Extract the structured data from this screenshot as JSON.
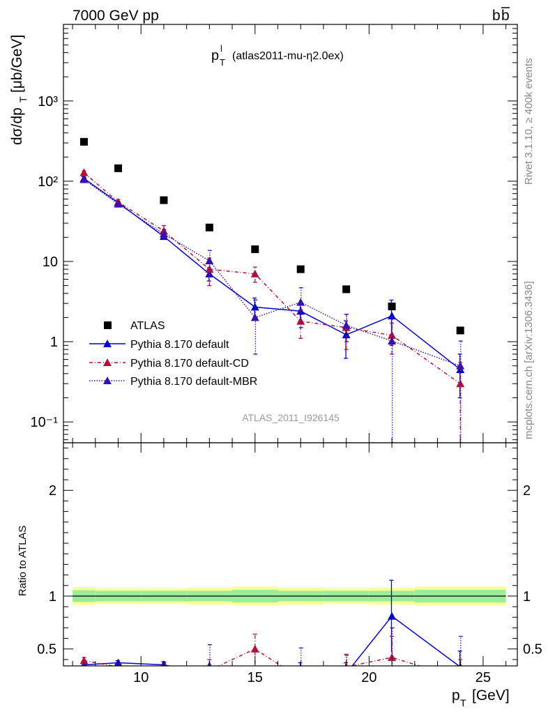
{
  "header": {
    "left": "7000 GeV pp",
    "right": "b",
    "right_bar": "b"
  },
  "plot_title": {
    "main": "p",
    "sup": "l",
    "sub": "T",
    "detail": "(atlas2011-mu-η2.0ex)"
  },
  "side_labels": {
    "rivet": "Rivet 3.1.10, ≥ 400k events",
    "mcplots": "mcplots.cern.ch [arXiv:1306.3436]"
  },
  "watermark": "ATLAS_2011_I926145",
  "y_label_top": "dσ/dp",
  "y_label_top_sub": "T",
  "y_label_top_unit": "[μb/GeV]",
  "y_label_bottom": "Ratio to ATLAS",
  "x_label": "p",
  "x_label_sub": "T",
  "x_label_unit": "[GeV]",
  "legend": {
    "atlas": "ATLAS",
    "default": "Pythia 8.170 default",
    "cd": "Pythia 8.170 default-CD",
    "mbr": "Pythia 8.170 default-MBR"
  },
  "colors": {
    "atlas": "#000000",
    "default": "#0000cc",
    "cd": "#b0103a",
    "mbr": "#3a0fb0",
    "band_inner": "#99ee99",
    "band_outer": "#ffff99"
  },
  "chart_data": [
    {
      "type": "scatter",
      "title": "",
      "xlim": [
        6.6,
        26.5
      ],
      "ylim": [
        0.055,
        9000
      ],
      "yscale": "log",
      "xticks": [
        "10",
        "15",
        "20",
        "25"
      ],
      "yticks": [
        "10⁻¹",
        "1",
        "10",
        "10²",
        "10³"
      ],
      "x_edges": [
        7,
        8,
        10,
        12,
        14,
        16,
        18,
        20,
        22,
        26
      ],
      "series": [
        {
          "name": "ATLAS",
          "x": [
            7.5,
            9,
            11,
            13,
            15,
            17,
            19,
            21,
            24
          ],
          "y": [
            310,
            145,
            58,
            26.5,
            14.2,
            8.0,
            4.5,
            2.75,
            1.38
          ]
        },
        {
          "name": "Pythia 8.170 default",
          "x": [
            7.5,
            9,
            11,
            13,
            15,
            17,
            19,
            21,
            24
          ],
          "y": [
            108,
            54,
            20.5,
            7.0,
            2.7,
            2.4,
            1.22,
            2.1,
            0.45
          ],
          "err": [
            6,
            3,
            1.5,
            1.3,
            0.8,
            0.6,
            0.6,
            1.2,
            0.25
          ]
        },
        {
          "name": "Pythia 8.170 default-CD",
          "x": [
            7.5,
            9,
            11,
            13,
            15,
            17,
            19,
            21,
            24
          ],
          "y": [
            128,
            55,
            24,
            8.0,
            7.0,
            1.8,
            1.5,
            1.2,
            0.3
          ],
          "err": [
            7,
            4,
            4,
            3,
            1.5,
            0.7,
            0.7,
            0.5,
            0.25
          ]
        },
        {
          "name": "Pythia 8.170 default-MBR",
          "x": [
            7.5,
            9,
            11,
            13,
            15,
            17,
            19,
            21,
            24
          ],
          "y": [
            105,
            52,
            22,
            10.2,
            2.0,
            3.1,
            1.6,
            1.02,
            0.5
          ],
          "err": [
            6,
            3,
            3,
            3.5,
            1.3,
            1.6,
            0.6,
            1.01,
            0.52
          ]
        }
      ]
    },
    {
      "type": "line",
      "title": "",
      "ylabel": "Ratio to ATLAS",
      "xlim": [
        6.6,
        26.5
      ],
      "ylim": [
        0.34,
        2.45
      ],
      "xticks": [
        "10",
        "15",
        "20",
        "25"
      ],
      "yticks": [
        "0.5",
        "1",
        "2"
      ],
      "band_inner_half": [
        0.055,
        0.05,
        0.05,
        0.05,
        0.06,
        0.05,
        0.05,
        0.05,
        0.06
      ],
      "band_outer_half": [
        0.085,
        0.075,
        0.075,
        0.08,
        0.09,
        0.08,
        0.075,
        0.08,
        0.09
      ],
      "series": [
        {
          "name": "Pythia 8.170 default",
          "x": [
            7.5,
            9,
            11,
            13,
            15,
            17,
            19,
            21,
            24
          ],
          "y": [
            0.35,
            0.37,
            0.35,
            0.26,
            0.19,
            0.3,
            0.27,
            0.81,
            0.33
          ],
          "err": [
            0.02,
            0.02,
            0.03,
            0.05,
            0.06,
            0.07,
            0.1,
            0.34,
            0.15
          ]
        },
        {
          "name": "Pythia 8.170 default-CD",
          "x": [
            7.5,
            9,
            11,
            13,
            15,
            17,
            19,
            21,
            24
          ],
          "y": [
            0.39,
            0.33,
            0.3,
            0.3,
            0.5,
            0.22,
            0.33,
            0.42,
            0.22
          ],
          "err": [
            0.03,
            0.03,
            0.06,
            0.1,
            0.14,
            0.08,
            0.12,
            0.2,
            0.18
          ]
        },
        {
          "name": "Pythia 8.170 default-MBR",
          "x": [
            7.5,
            9,
            11,
            13,
            15,
            17,
            19,
            21,
            24
          ],
          "y": [
            0.33,
            0.34,
            0.33,
            0.34,
            0.14,
            0.31,
            0.3,
            0.3,
            0.32
          ],
          "err": [
            0.02,
            0.02,
            0.04,
            0.2,
            0.1,
            0.2,
            0.14,
            0.4,
            0.3
          ]
        }
      ]
    }
  ]
}
